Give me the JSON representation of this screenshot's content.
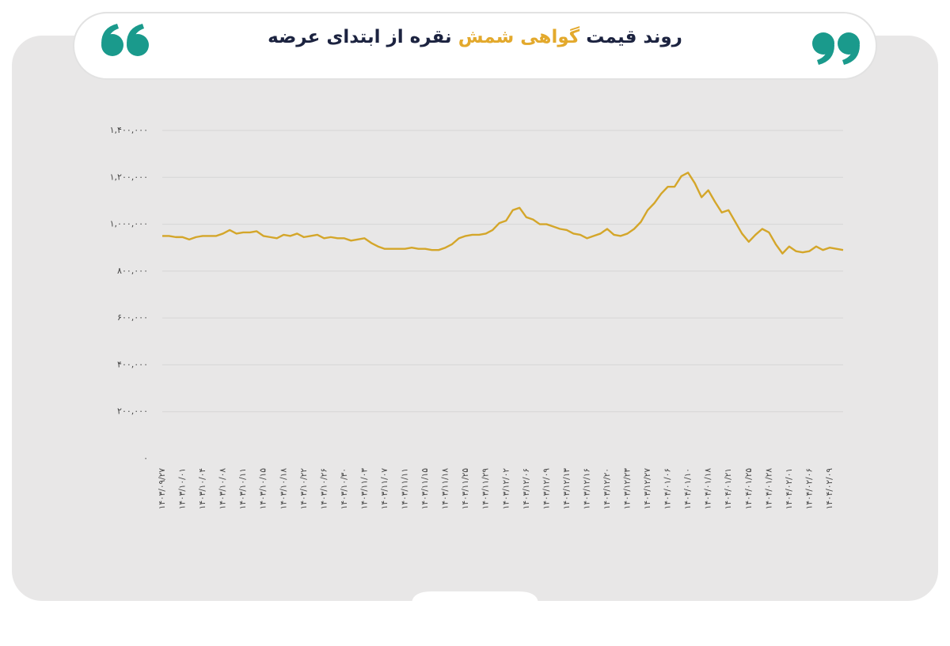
{
  "chart_data": {
    "type": "line",
    "title": [
      "روند قیمت",
      "گواهی شمش",
      "نقره از ابتدای عرضه"
    ],
    "categories": [
      "۱۴۰۳/۰۹/۲۷",
      null,
      null,
      "۱۴۰۳/۱۰/۰۱",
      null,
      null,
      "۱۴۰۳/۱۰/۰۴",
      null,
      null,
      "۱۴۰۳/۱۰/۰۸",
      null,
      null,
      "۱۴۰۳/۱۰/۱۱",
      null,
      null,
      "۱۴۰۳/۱۰/۱۵",
      null,
      null,
      "۱۴۰۳/۱۰/۱۸",
      null,
      null,
      "۱۴۰۳/۱۰/۲۲",
      null,
      null,
      "۱۴۰۳/۱۰/۲۶",
      null,
      null,
      "۱۴۰۳/۱۰/۳۰",
      null,
      null,
      "۱۴۰۳/۱۱/۰۳",
      null,
      null,
      "۱۴۰۳/۱۱/۰۷",
      null,
      null,
      "۱۴۰۳/۱۱/۱۱",
      null,
      null,
      "۱۴۰۳/۱۱/۱۵",
      null,
      null,
      "۱۴۰۳/۱۱/۱۸",
      null,
      null,
      "۱۴۰۳/۱۱/۲۵",
      null,
      null,
      "۱۴۰۳/۱۱/۲۹",
      null,
      null,
      "۱۴۰۳/۱۲/۰۲",
      null,
      null,
      "۱۴۰۳/۱۲/۰۶",
      null,
      null,
      "۱۴۰۳/۱۲/۰۹",
      null,
      null,
      "۱۴۰۳/۱۲/۱۳",
      null,
      null,
      "۱۴۰۳/۱۲/۱۶",
      null,
      null,
      "۱۴۰۳/۱۲/۲۰",
      null,
      null,
      "۱۴۰۳/۱۲/۲۳",
      null,
      null,
      "۱۴۰۳/۱۲/۲۷",
      null,
      null,
      "۱۴۰۴/۰۱/۰۶",
      null,
      null,
      "۱۴۰۴/۰۱/۱۰",
      null,
      null,
      "۱۴۰۴/۰۱/۱۸",
      null,
      null,
      "۱۴۰۴/۰۱/۲۱",
      null,
      null,
      "۱۴۰۴/۰۱/۲۵",
      null,
      null,
      "۱۴۰۴/۰۱/۲۸",
      null,
      null,
      "۱۴۰۴/۰۲/۰۱",
      null,
      null,
      "۱۴۰۴/۰۲/۰۶",
      null,
      null,
      "۱۴۰۴/۰۲/۰۹",
      null,
      null
    ],
    "values": [
      950000,
      950000,
      945000,
      945000,
      935000,
      945000,
      950000,
      950000,
      950000,
      960000,
      975000,
      960000,
      965000,
      965000,
      970000,
      950000,
      945000,
      940000,
      955000,
      950000,
      960000,
      945000,
      950000,
      955000,
      940000,
      945000,
      940000,
      940000,
      930000,
      935000,
      940000,
      920000,
      905000,
      895000,
      895000,
      895000,
      895000,
      900000,
      895000,
      895000,
      890000,
      890000,
      900000,
      915000,
      940000,
      950000,
      955000,
      955000,
      960000,
      975000,
      1005000,
      1015000,
      1060000,
      1070000,
      1030000,
      1020000,
      1000000,
      1000000,
      990000,
      980000,
      975000,
      960000,
      955000,
      940000,
      950000,
      960000,
      980000,
      955000,
      950000,
      960000,
      980000,
      1010000,
      1060000,
      1090000,
      1130000,
      1160000,
      1160000,
      1205000,
      1220000,
      1175000,
      1115000,
      1145000,
      1095000,
      1050000,
      1060000,
      1010000,
      960000,
      925000,
      955000,
      980000,
      965000,
      915000,
      875000,
      905000,
      885000,
      880000,
      885000,
      905000,
      890000,
      900000,
      895000,
      890000
    ],
    "color": "#d4a62a",
    "ylim": [
      0,
      1400000
    ],
    "yticks": [
      {
        "value": 0,
        "label": "۰"
      },
      {
        "value": 200000,
        "label": "۲۰۰,۰۰۰"
      },
      {
        "value": 400000,
        "label": "۴۰۰,۰۰۰"
      },
      {
        "value": 600000,
        "label": "۶۰۰,۰۰۰"
      },
      {
        "value": 800000,
        "label": "۸۰۰,۰۰۰"
      },
      {
        "value": 1000000,
        "label": "۱,۰۰۰,۰۰۰"
      },
      {
        "value": 1200000,
        "label": "۱,۲۰۰,۰۰۰"
      },
      {
        "value": 1400000,
        "label": "۱,۴۰۰,۰۰۰"
      }
    ],
    "grid": true
  }
}
